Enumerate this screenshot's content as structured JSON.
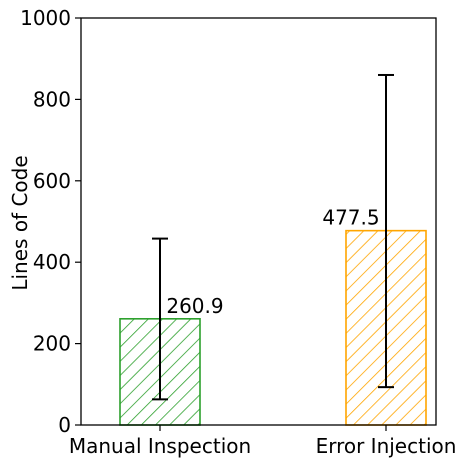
{
  "chart_data": {
    "type": "bar",
    "categories": [
      "Manual Inspection",
      "Error Injection"
    ],
    "values": [
      260.9,
      477.5
    ],
    "error_bars": [
      [
        63,
        458
      ],
      [
        93,
        860
      ]
    ],
    "data_labels": [
      "260.9",
      "477.5"
    ],
    "xlabel": "",
    "ylabel": "Lines of Code",
    "ylim": [
      0,
      1000
    ],
    "yticks": [
      0,
      200,
      400,
      600,
      800,
      1000
    ],
    "ytick_labels": [
      "0",
      "200",
      "400",
      "600",
      "800",
      "1000"
    ],
    "bar_colors": [
      "#2ca02c",
      "#ffa500"
    ],
    "bar_hatch": "diagonal",
    "grid": false,
    "legend": "none"
  }
}
